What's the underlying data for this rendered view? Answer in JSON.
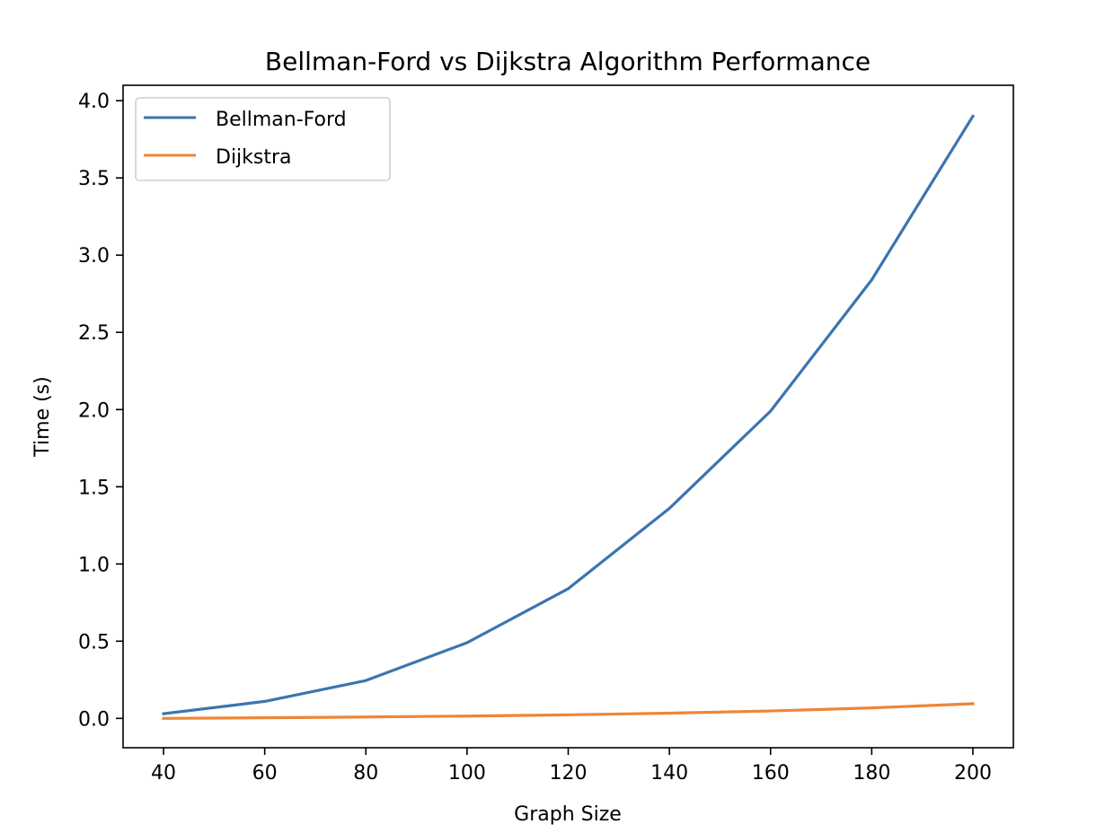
{
  "chart_data": {
    "type": "line",
    "title": "Bellman-Ford vs Dijkstra Algorithm Performance",
    "xlabel": "Graph Size",
    "ylabel": "Time (s)",
    "x": [
      40,
      60,
      80,
      100,
      120,
      140,
      160,
      180,
      200
    ],
    "xlim": [
      32,
      208
    ],
    "ylim": [
      -0.19,
      4.1
    ],
    "xticks": [
      40,
      60,
      80,
      100,
      120,
      140,
      160,
      180,
      200
    ],
    "yticks": [
      0.0,
      0.5,
      1.0,
      1.5,
      2.0,
      2.5,
      3.0,
      3.5,
      4.0
    ],
    "xtick_labels": [
      "40",
      "60",
      "80",
      "100",
      "120",
      "140",
      "160",
      "180",
      "200"
    ],
    "ytick_labels": [
      "0.0",
      "0.5",
      "1.0",
      "1.5",
      "2.0",
      "2.5",
      "3.0",
      "3.5",
      "4.0"
    ],
    "grid": false,
    "legend_position": "top-left",
    "series": [
      {
        "name": "Bellman-Ford",
        "color": "#3b75af",
        "values": [
          0.03,
          0.11,
          0.245,
          0.49,
          0.84,
          1.36,
          1.99,
          2.84,
          3.9
        ]
      },
      {
        "name": "Dijkstra",
        "color": "#ef8636",
        "values": [
          0.0,
          0.004,
          0.009,
          0.015,
          0.023,
          0.034,
          0.048,
          0.068,
          0.095
        ]
      }
    ]
  }
}
